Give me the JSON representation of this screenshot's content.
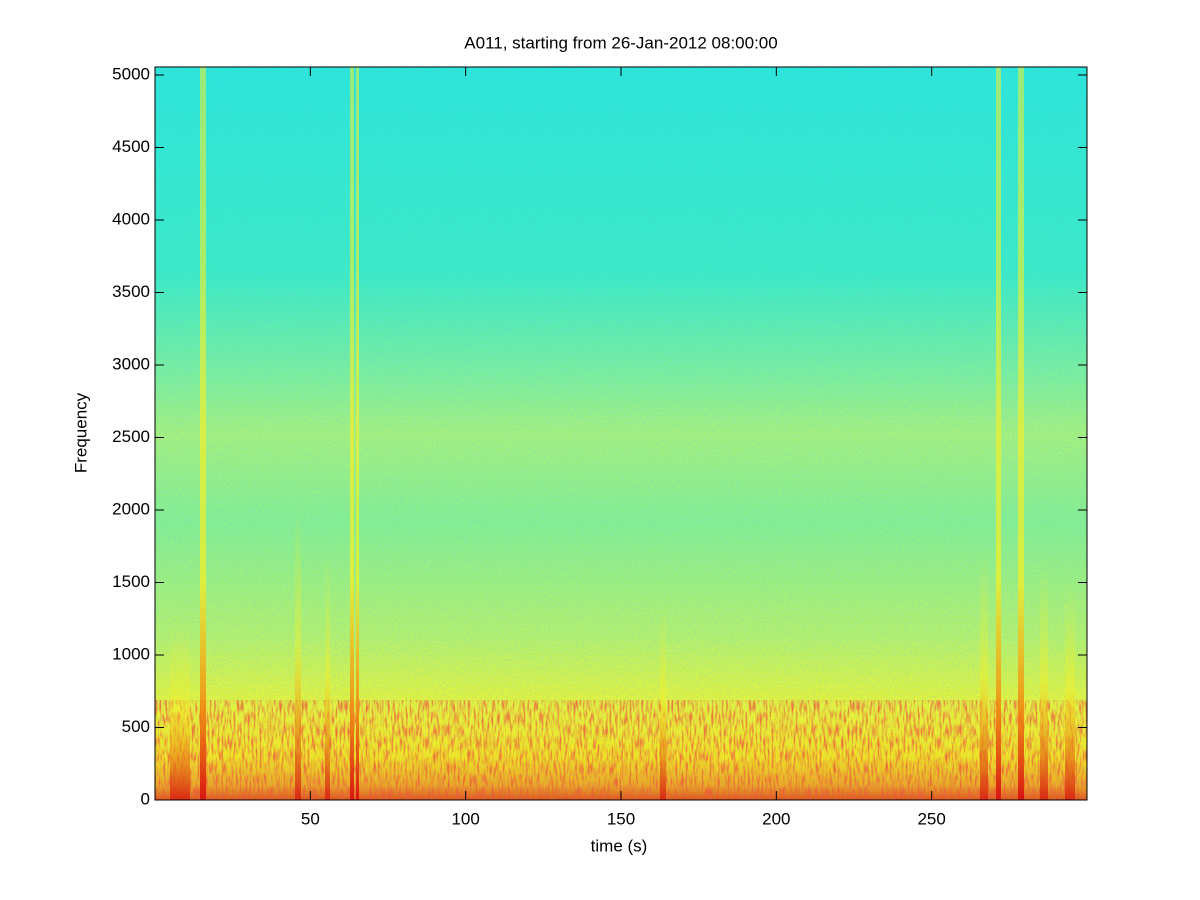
{
  "chart_data": {
    "type": "spectrogram",
    "title": "A011, starting from 26-Jan-2012 08:00:00",
    "x_label": "time (s)",
    "y_label": "Frequency",
    "xlim": [
      0,
      300
    ],
    "xticks": [
      50,
      100,
      150,
      200,
      250
    ],
    "ylim": [
      0,
      5055
    ],
    "yticks": [
      0,
      500,
      1000,
      1500,
      2000,
      2500,
      3000,
      3500,
      4000,
      4500,
      5000
    ]
  }
}
